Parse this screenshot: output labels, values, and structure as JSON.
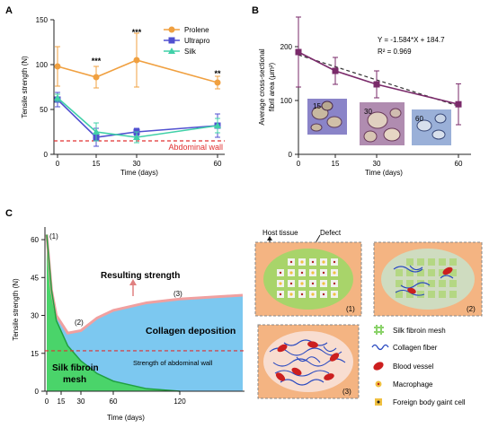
{
  "panel_letters": {
    "a": "A",
    "b": "B",
    "c": "C"
  },
  "chart_data": [
    {
      "panel": "A",
      "type": "line",
      "xlabel": "Time (days)",
      "ylabel": "Tensile strength (N)",
      "x": [
        0,
        15,
        30,
        60
      ],
      "x_ticks": [
        "0",
        "15",
        "30",
        "60"
      ],
      "y_ticks": [
        "0",
        "50",
        "100",
        "150"
      ],
      "ylim": [
        0,
        150
      ],
      "grid": false,
      "legend_position": "top-right",
      "series": [
        {
          "name": "Prolene",
          "color": "#f0a040",
          "marker": "circle",
          "values": [
            98,
            86,
            105,
            80
          ],
          "err": [
            22,
            12,
            30,
            7
          ]
        },
        {
          "name": "Ultrapro",
          "color": "#5050d0",
          "marker": "square",
          "values": [
            61,
            19,
            25,
            32
          ],
          "err": [
            8,
            10,
            4,
            13
          ]
        },
        {
          "name": "Silk",
          "color": "#40d0a8",
          "marker": "triangle",
          "values": [
            63,
            25,
            19,
            32
          ],
          "err": [
            4,
            10,
            6,
            8
          ]
        }
      ],
      "annotations": [
        {
          "x": 15,
          "text": "***"
        },
        {
          "x": 30,
          "text": "***"
        },
        {
          "x": 60,
          "text": "**"
        }
      ],
      "reference_line": {
        "value": 15,
        "label": "Abdominal wall",
        "color": "#e03030"
      }
    },
    {
      "panel": "B",
      "type": "line",
      "xlabel": "Time (days)",
      "ylabel_line1": "Average cross-sectional",
      "ylabel_line2": "fibril area (μm²)",
      "x": [
        0,
        15,
        30,
        60
      ],
      "x_ticks": [
        "0",
        "15",
        "30",
        "60"
      ],
      "y_ticks": [
        "0",
        "100",
        "200"
      ],
      "ylim": [
        0,
        250
      ],
      "grid": false,
      "series": [
        {
          "name": "",
          "color": "#7a2a6a",
          "marker": "square",
          "values": [
            190,
            155,
            130,
            93
          ],
          "err": [
            65,
            25,
            25,
            38
          ]
        }
      ],
      "fit": {
        "equation": "Y = -1.584*X + 184.7",
        "r2": "R² = 0.969",
        "slope": -1.584,
        "intercept": 184.7
      },
      "inset_labels": [
        "15",
        "30",
        "60"
      ]
    },
    {
      "panel": "C",
      "type": "area",
      "xlabel": "Time (days)",
      "ylabel": "Tensile strength (N)",
      "x_ticks": [
        "0",
        "15",
        "30",
        "60",
        "120"
      ],
      "y_ticks": [
        "0",
        "15",
        "30",
        "45",
        "60"
      ],
      "ylim": [
        0,
        65
      ],
      "grid": false,
      "series": [
        {
          "name": "Silk fibroin mesh",
          "color": "#4ad46a",
          "x": [
            0,
            5,
            10,
            20,
            30,
            45,
            60,
            90,
            120
          ],
          "values": [
            62,
            40,
            28,
            18,
            12,
            7,
            4,
            1,
            0
          ]
        },
        {
          "name": "Resulting strength",
          "color": "#f0a0a0",
          "x": [
            0,
            5,
            10,
            20,
            30,
            45,
            60,
            90,
            120,
            180
          ],
          "values": [
            62,
            40,
            30,
            23,
            24,
            29,
            32,
            35,
            36.5,
            38
          ]
        }
      ],
      "reference_line": {
        "value": 16,
        "label": "Strength of abdominal wall",
        "color": "#e03030"
      },
      "labels": {
        "resulting": "Resulting strength",
        "collagen": "Collagen deposition",
        "silk_mesh_line1": "Silk fibroin",
        "silk_mesh_line2": "mesh",
        "wall": "Strength of abdominal wall",
        "p1": "(1)",
        "p2": "(2)",
        "p3": "(3)"
      }
    }
  ],
  "schematic": {
    "host_tissue": "Host tissue",
    "defect": "Defect",
    "stage_labels": [
      "(1)",
      "(2)",
      "(3)"
    ],
    "legend": [
      {
        "icon": "silk-mesh-icon",
        "label": "Silk fibroin mesh"
      },
      {
        "icon": "collagen-fiber-icon",
        "label": "Collagen fiber"
      },
      {
        "icon": "blood-vessel-icon",
        "label": "Blood vessel"
      },
      {
        "icon": "macrophage-icon",
        "label": "Macrophage"
      },
      {
        "icon": "foreign-body-cell-icon",
        "label": "Foreign body gaint cell"
      }
    ],
    "colors": {
      "tissue": "#f4b482",
      "defect": "#c8dc78",
      "mesh": "#8ad26a",
      "vessel": "#cc1f1f",
      "fiber": "#2848c0"
    }
  }
}
